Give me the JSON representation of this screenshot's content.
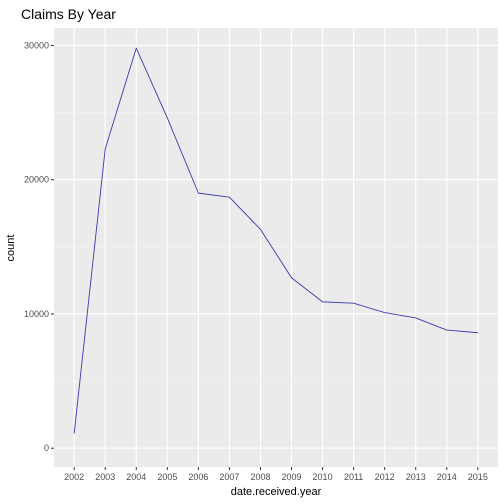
{
  "chart_data": {
    "type": "line",
    "title": "Claims By Year",
    "xlabel": "date.received.year",
    "ylabel": "count",
    "x": [
      2002,
      2003,
      2004,
      2005,
      2006,
      2007,
      2008,
      2009,
      2010,
      2011,
      2012,
      2013,
      2014,
      2015
    ],
    "series": [
      {
        "values": [
          1100,
          22300,
          29800,
          24600,
          19000,
          18700,
          16300,
          12700,
          10900,
          10800,
          10100,
          9700,
          8800,
          8600
        ]
      }
    ],
    "x_tick_labels": [
      "2002",
      "2003",
      "2004",
      "2005",
      "2006",
      "2007",
      "2008",
      "2009",
      "2010",
      "2011",
      "2012",
      "2013",
      "2014",
      "2015"
    ],
    "y_ticks": [
      0,
      10000,
      20000,
      30000
    ],
    "y_tick_labels": [
      "0",
      "10000",
      "20000",
      "30000"
    ],
    "xlim": [
      2001.35,
      2015.65
    ],
    "ylim": [
      -1400,
      31300
    ],
    "grid": true,
    "legend": "none",
    "colors": {
      "panel_background": "#ebebeb",
      "grid_major": "#ffffff",
      "grid_minor": "#f5f5f5",
      "line": "#3b3bb0",
      "tick_text": "#4d4d4d",
      "tick_mark": "#333333"
    }
  }
}
